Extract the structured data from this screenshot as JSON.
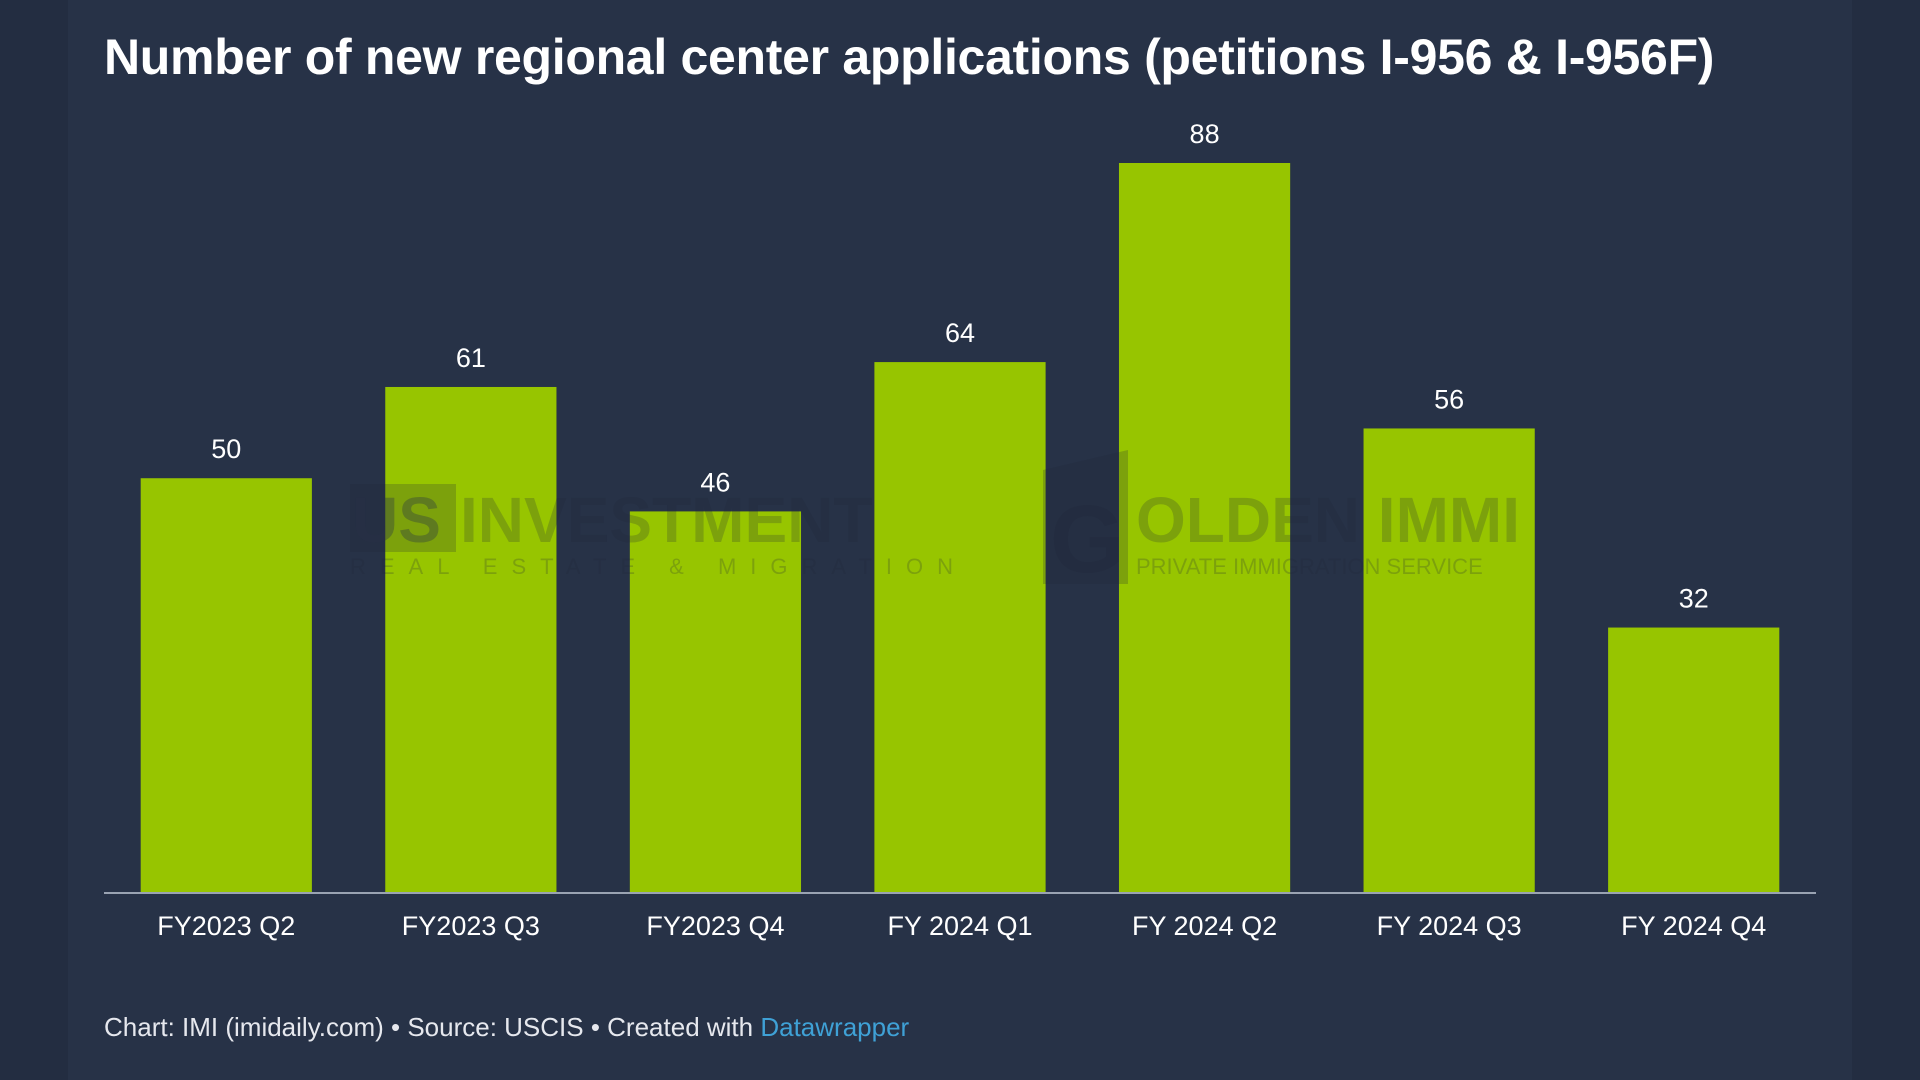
{
  "chart_data": {
    "type": "bar",
    "title": "Number of new regional center applications (petitions I-956 & I-956F)",
    "categories": [
      "FY2023 Q2",
      "FY2023 Q3",
      "FY2023 Q4",
      "FY 2024 Q1",
      "FY 2024 Q2",
      "FY 2024 Q3",
      "FY 2024 Q4"
    ],
    "values": [
      50,
      61,
      46,
      64,
      88,
      56,
      32
    ],
    "xlabel": "",
    "ylabel": "",
    "ylim": [
      0,
      88
    ],
    "grid": false,
    "legend": "none",
    "bar_color": "#97c500"
  },
  "footer": {
    "prefix": "Chart: IMI (imidaily.com) • Source: USCIS • Created with ",
    "link": "Datawrapper",
    "link_color": "#3fa1d6"
  },
  "watermarks": {
    "left_brand": "US",
    "left_brand_rest": "INVESTMENT",
    "left_tagline": "REAL ESTATE & MIGRATION",
    "right_brand_initial": "G",
    "right_brand_rest": "OLDEN IMMI",
    "right_tagline": "PRIVATE IMMIGRATION SERVICE"
  },
  "colors": {
    "background": "#273247",
    "bar": "#97c500",
    "text": "#ffffff",
    "axis": "#9aa3b2"
  }
}
